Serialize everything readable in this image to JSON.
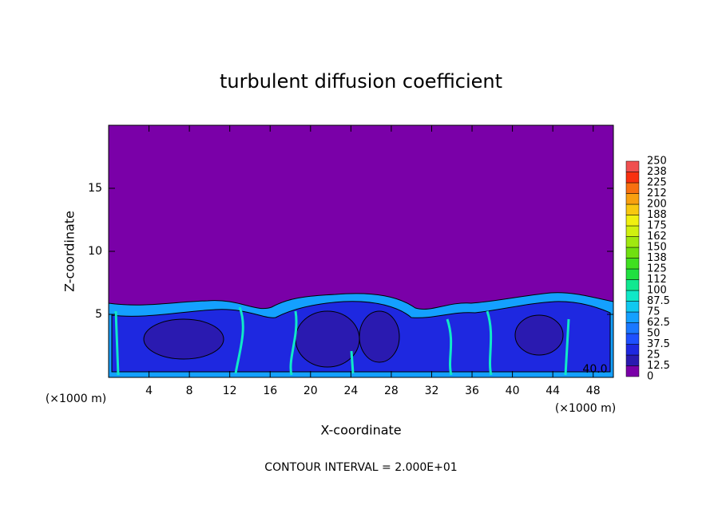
{
  "chart_data": {
    "type": "contour",
    "title": "turbulent diffusion coefficient",
    "x_label": "X-coordinate",
    "y_label": "Z-coordinate",
    "x_unit_left": "(×1000 m)",
    "x_unit_right": "(×1000 m)",
    "footer": "CONTOUR INTERVAL = 2.000E+01",
    "annotation": "40.0",
    "xlim": [
      0,
      50
    ],
    "xticks": [
      4,
      8,
      12,
      16,
      20,
      24,
      28,
      32,
      36,
      40,
      44,
      48
    ],
    "ylim": [
      0,
      20
    ],
    "yticks": [
      5,
      10,
      15
    ],
    "colorbar": {
      "labels": [
        "0",
        "12.5",
        "25",
        "37.5",
        "50",
        "62.5",
        "75",
        "87.5",
        "100",
        "112",
        "125",
        "138",
        "150",
        "162",
        "175",
        "188",
        "200",
        "212",
        "225",
        "238",
        "250"
      ],
      "colors": [
        "#7a00a8",
        "#2a1ab0",
        "#1e28e0",
        "#1e50ff",
        "#1a78ff",
        "#14a0ff",
        "#10c8f0",
        "#10e8c8",
        "#10e890",
        "#20e040",
        "#40e020",
        "#70e010",
        "#a0e810",
        "#d0f010",
        "#f0f010",
        "#f8c810",
        "#f8a010",
        "#f87010",
        "#f83010",
        "#f05050"
      ]
    }
  }
}
